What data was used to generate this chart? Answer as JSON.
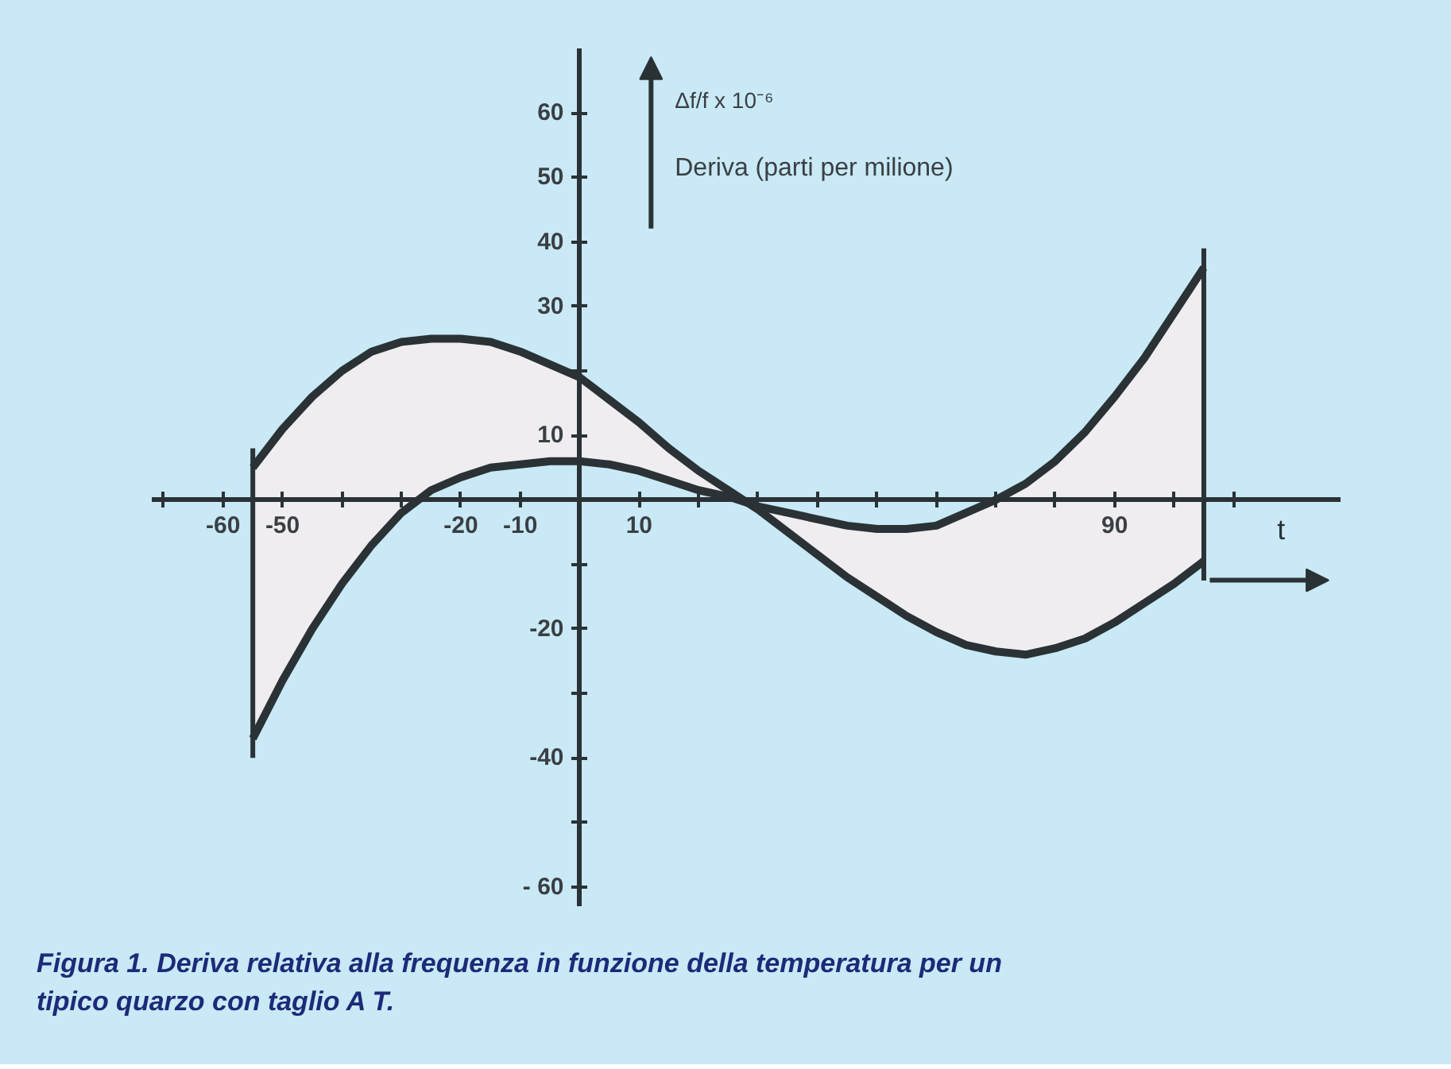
{
  "chart_data": {
    "type": "line",
    "ylabel": "Δf/f x 10⁻⁶",
    "xlabel": "t",
    "annotations": [
      "Deriva (parti per milione)",
      "Figura 1. Deriva relativa alla frequenza in funzione della temperatura per un tipico quarzo con taglio A T."
    ],
    "x": [
      -55,
      -50,
      -45,
      -40,
      -35,
      -30,
      -25,
      -20,
      -15,
      -10,
      -5,
      0,
      5,
      10,
      15,
      20,
      25,
      30,
      35,
      40,
      45,
      50,
      55,
      60,
      65,
      70,
      75,
      80,
      85,
      90,
      95,
      100,
      105
    ],
    "series": [
      {
        "color": "#2a3236",
        "values": [
          5,
          11,
          16,
          20,
          23,
          24.5,
          25,
          25,
          24.5,
          23,
          21,
          19,
          15.5,
          12,
          8,
          4.5,
          1.5,
          -1.5,
          -5,
          -8.5,
          -12,
          -15,
          -18,
          -20.5,
          -22.5,
          -23.5,
          -24,
          -23,
          -21.5,
          -19,
          -16,
          -13,
          -9.5
        ],
        "lower": [
          -37,
          -28,
          -20,
          -13,
          -7,
          -2,
          1.5,
          3.5,
          5,
          5.5,
          6,
          6,
          5.5,
          4.5,
          3,
          1.5,
          0.5,
          -1,
          -2,
          -3,
          -4,
          -4.5,
          -4.5,
          -4,
          -2,
          0,
          2.5,
          6,
          10.5,
          16,
          22,
          29,
          36
        ],
        "upper": [
          5,
          11,
          16,
          20,
          23,
          24.5,
          25,
          25,
          24.5,
          23,
          21,
          19,
          15.5,
          12,
          8,
          4.5,
          1.5,
          -1.5,
          -5,
          -8.5,
          -12,
          -15,
          -18,
          -20.5,
          -22.5,
          -23.5,
          -24,
          -23,
          -21.5,
          -19,
          -16,
          -13,
          -9.5
        ]
      },
      {
        "color": "#2a3236",
        "values": [
          -37,
          -28,
          -20,
          -13,
          -7,
          -2,
          1.5,
          3.5,
          5,
          5.5,
          6,
          6,
          5.5,
          4.5,
          3,
          1.5,
          0.5,
          -1,
          -2,
          -3,
          -4,
          -4.5,
          -4.5,
          -4,
          -2,
          0,
          2.5,
          6,
          10.5,
          16,
          22,
          29,
          36
        ]
      }
    ],
    "xlim": [
      -72,
      128
    ],
    "ylim": [
      -63,
      70
    ],
    "xticks": [
      {
        "value": -70,
        "label": null
      },
      -60,
      -50,
      {
        "value": -40,
        "label": null
      },
      {
        "value": -30,
        "label": null
      },
      -20,
      -10,
      10,
      {
        "value": 20,
        "label": null
      },
      {
        "value": 30,
        "label": null
      },
      {
        "value": 40,
        "label": null
      },
      {
        "value": 50,
        "label": null
      },
      {
        "value": 60,
        "label": null
      },
      {
        "value": 70,
        "label": null
      },
      {
        "value": 80,
        "label": null
      },
      90,
      {
        "value": 100,
        "label": null
      },
      {
        "value": 110,
        "label": null
      }
    ],
    "yticks": [
      {
        "value": -60,
        "label": "- 60"
      },
      {
        "value": -50,
        "label": null
      },
      -40,
      {
        "value": -30,
        "label": null
      },
      -20,
      {
        "value": -10,
        "label": null
      },
      10,
      {
        "value": 20,
        "label": null
      },
      30,
      40,
      50,
      60
    ],
    "ref_lines": [
      {
        "axis": "x",
        "value": -55
      },
      {
        "axis": "x",
        "value": 105
      }
    ],
    "line_style": "solid",
    "marker": "none"
  }
}
